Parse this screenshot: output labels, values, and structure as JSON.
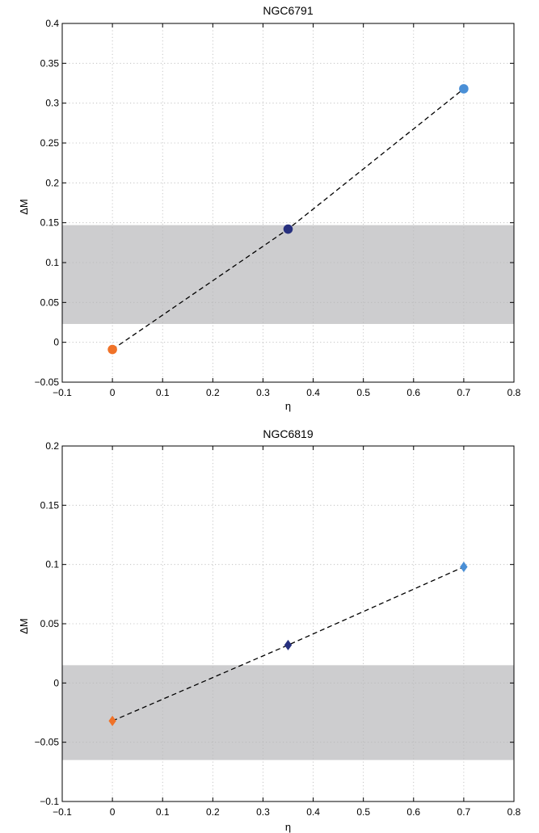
{
  "chart_data": [
    {
      "type": "scatter",
      "title": "NGC6791",
      "xlabel": "η",
      "ylabel": "ΔM",
      "xlim": [
        -0.1,
        0.8
      ],
      "ylim": [
        -0.05,
        0.4
      ],
      "xticks": [
        -0.1,
        0,
        0.1,
        0.2,
        0.3,
        0.4,
        0.5,
        0.6,
        0.7,
        0.8
      ],
      "xtick_labels": [
        "−0.1",
        "0",
        "0.1",
        "0.2",
        "0.3",
        "0.4",
        "0.5",
        "0.6",
        "0.7",
        "0.8"
      ],
      "yticks": [
        -0.05,
        0,
        0.05,
        0.1,
        0.15,
        0.2,
        0.25,
        0.3,
        0.35,
        0.4
      ],
      "ytick_labels": [
        "−0.05",
        "0",
        "0.05",
        "0.1",
        "0.15",
        "0.2",
        "0.25",
        "0.3",
        "0.35",
        "0.4"
      ],
      "grid": true,
      "marker": "circle",
      "shaded_band": {
        "y_from": 0.023,
        "y_to": 0.147,
        "color": "#cdcdcf"
      },
      "fit_line": "dashed",
      "points": [
        {
          "x": 0.0,
          "y": -0.009,
          "color": "#f07228"
        },
        {
          "x": 0.35,
          "y": 0.142,
          "color": "#27307f"
        },
        {
          "x": 0.7,
          "y": 0.318,
          "color": "#4a8fd6"
        }
      ]
    },
    {
      "type": "scatter",
      "title": "NGC6819",
      "xlabel": "η",
      "ylabel": "ΔM",
      "xlim": [
        -0.1,
        0.8
      ],
      "ylim": [
        -0.1,
        0.2
      ],
      "xticks": [
        -0.1,
        0,
        0.1,
        0.2,
        0.3,
        0.4,
        0.5,
        0.6,
        0.7,
        0.8
      ],
      "xtick_labels": [
        "−0.1",
        "0",
        "0.1",
        "0.2",
        "0.3",
        "0.4",
        "0.5",
        "0.6",
        "0.7",
        "0.8"
      ],
      "yticks": [
        -0.1,
        -0.05,
        0,
        0.05,
        0.1,
        0.15,
        0.2
      ],
      "ytick_labels": [
        "−0.1",
        "−0.05",
        "0",
        "0.05",
        "0.1",
        "0.15",
        "0.2"
      ],
      "grid": true,
      "marker": "diamond",
      "shaded_band": {
        "y_from": -0.065,
        "y_to": 0.015,
        "color": "#cdcdcf"
      },
      "fit_line": "dashed",
      "points": [
        {
          "x": 0.0,
          "y": -0.032,
          "color": "#f07228"
        },
        {
          "x": 0.35,
          "y": 0.032,
          "color": "#27307f"
        },
        {
          "x": 0.7,
          "y": 0.098,
          "color": "#4a8fd6"
        }
      ]
    }
  ]
}
